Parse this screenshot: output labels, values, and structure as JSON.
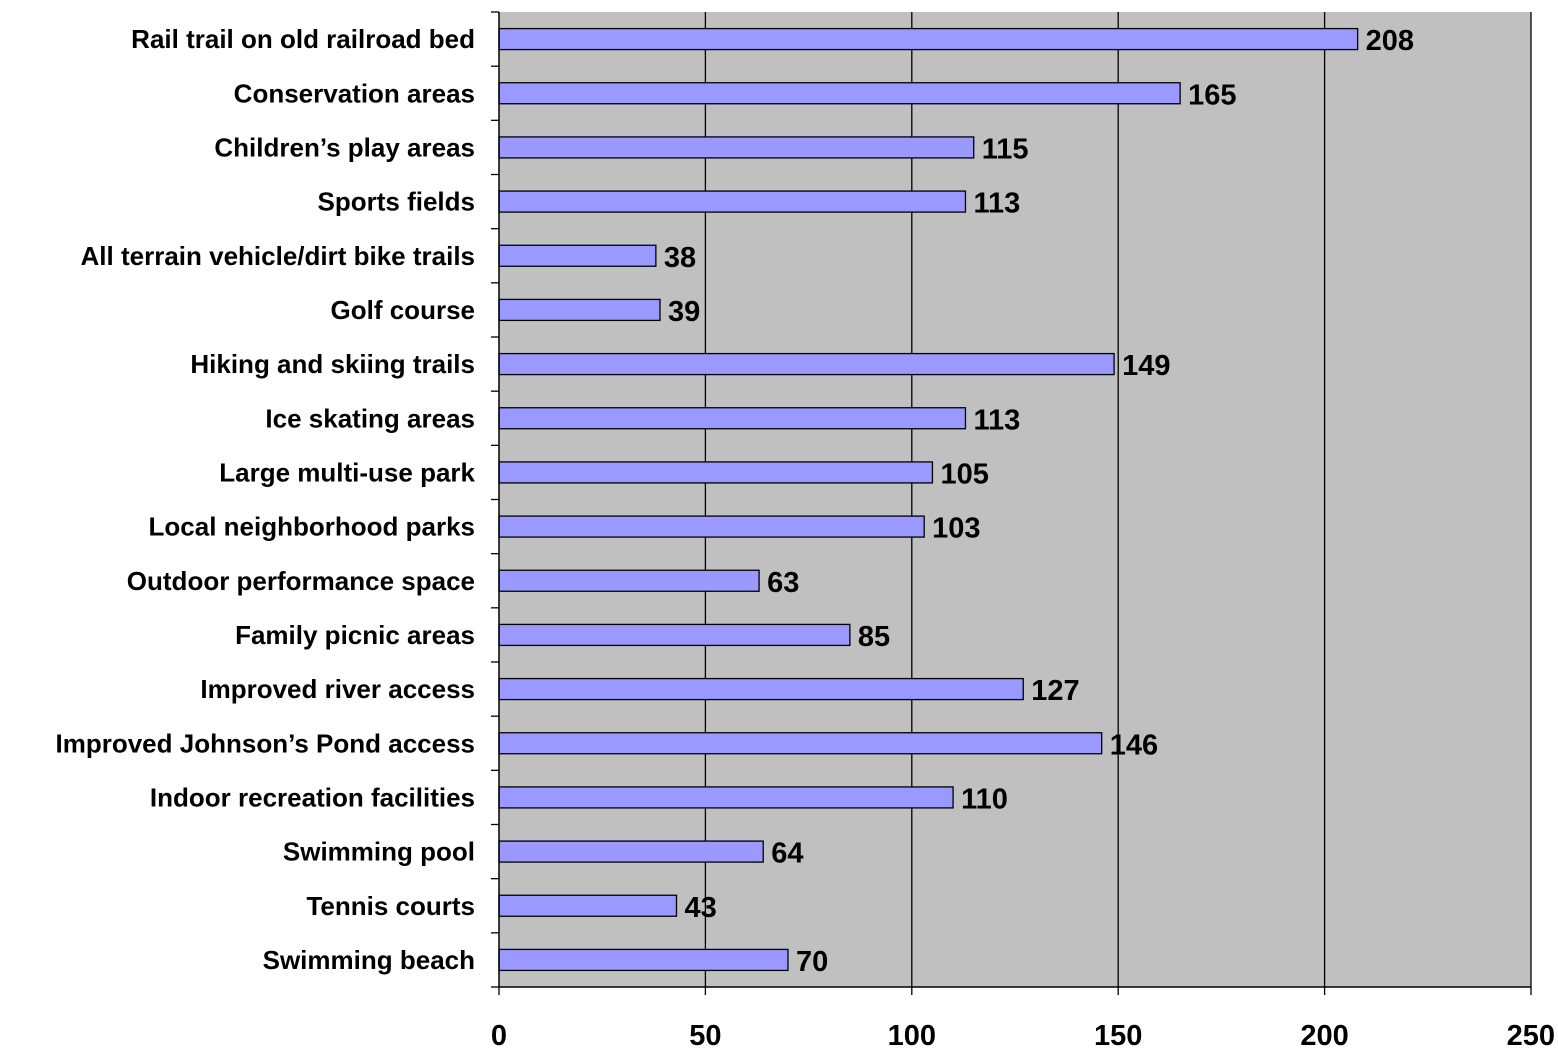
{
  "chart_data": {
    "type": "bar",
    "orientation": "horizontal",
    "title": "",
    "xlabel": "",
    "ylabel": "",
    "xlim": [
      0,
      250
    ],
    "x_ticks": [
      0,
      50,
      100,
      150,
      200,
      250
    ],
    "grid": true,
    "legend": "none",
    "colors": {
      "bar_fill": "#9999ff",
      "bar_stroke": "#000000",
      "plot_background": "#c0c0c0",
      "grid_line": "#000000"
    },
    "categories": [
      "Rail trail on old railroad bed",
      "Conservation areas",
      "Children’s play areas",
      "Sports fields",
      "All terrain vehicle/dirt bike trails",
      "Golf course",
      "Hiking and skiing trails",
      "Ice skating areas",
      "Large multi-use park",
      "Local neighborhood parks",
      "Outdoor performance space",
      "Family picnic areas",
      "Improved river access",
      "Improved Johnson’s Pond access",
      "Indoor recreation facilities",
      "Swimming pool",
      "Tennis courts",
      "Swimming beach"
    ],
    "values": [
      208,
      165,
      115,
      113,
      38,
      39,
      149,
      113,
      105,
      103,
      63,
      85,
      127,
      146,
      110,
      64,
      43,
      70
    ]
  }
}
